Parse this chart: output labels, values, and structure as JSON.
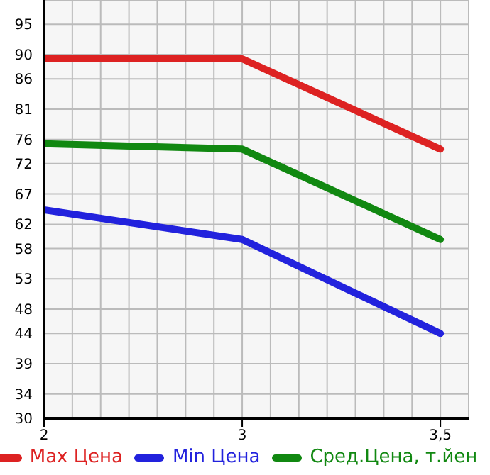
{
  "chart_data": {
    "type": "line",
    "categories": [
      "2",
      "3",
      "3,5"
    ],
    "series": [
      {
        "name": "Max Цена",
        "color": "#dd2222",
        "values": [
          89.3,
          89.3,
          74.4
        ]
      },
      {
        "name": "Min Цена",
        "color": "#2222dd",
        "values": [
          64.4,
          59.5,
          44
        ]
      },
      {
        "name": "Сред.Цена, т.йен",
        "color": "#118811",
        "values": [
          75.3,
          74.4,
          59.5
        ]
      }
    ],
    "ylim": [
      30,
      99
    ],
    "yticks": [
      30,
      34,
      39,
      44,
      48,
      53,
      58,
      62,
      67,
      72,
      76,
      81,
      86,
      90,
      95
    ],
    "grid": true,
    "legend": "bottom",
    "marker": "none",
    "line_style": "solid"
  }
}
